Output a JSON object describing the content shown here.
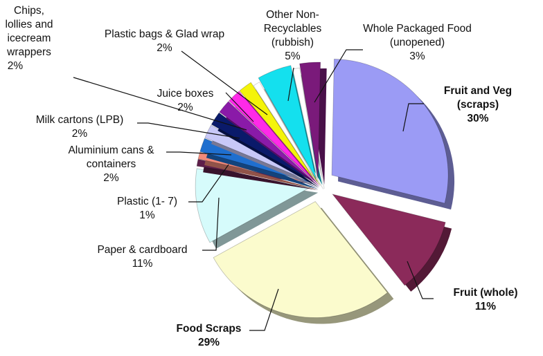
{
  "chart_data": {
    "type": "pie",
    "title": "",
    "slices": [
      {
        "label": "Fruit and Veg (scraps)",
        "value": 30,
        "value_label": "30%",
        "color": "#9b9bf5",
        "bold": true,
        "exploded": true
      },
      {
        "label": "Fruit (whole)",
        "value": 11,
        "value_label": "11%",
        "color": "#8b2a5a",
        "bold": true,
        "exploded": true
      },
      {
        "label": "Food Scraps",
        "value": 29,
        "value_label": "29%",
        "color": "#fbfbcd",
        "bold": true,
        "exploded": true
      },
      {
        "label": "Paper & cardboard",
        "value": 11,
        "value_label": "11%",
        "color": "#d6fbfb",
        "bold": false,
        "exploded": false
      },
      {
        "label": "Plastic (1- 7)",
        "value": 1,
        "value_label": "1%",
        "color": "#5e1f4a",
        "bold": false,
        "exploded": false
      },
      {
        "label": "",
        "value": 1,
        "value_label": "",
        "color": "#f28a7a",
        "bold": false,
        "exploded": false
      },
      {
        "label": "Aluminium cans & containers",
        "value": 2,
        "value_label": "2%",
        "color": "#1f6fcf",
        "bold": false,
        "exploded": false
      },
      {
        "label": "Milk cartons (LPB)",
        "value": 2,
        "value_label": "2%",
        "color": "#c8c8f8",
        "bold": false,
        "exploded": false
      },
      {
        "label": "",
        "value": 2,
        "value_label": "",
        "color": "#0a1a6a",
        "bold": false,
        "exploded": false
      },
      {
        "label": "Chips, lollies and icecream wrappers",
        "value": 2,
        "value_label": "2%",
        "color": "#8a1aa8",
        "bold": false,
        "exploded": false
      },
      {
        "label": "Juice boxes",
        "value": 2,
        "value_label": "2%",
        "color": "#ff2ae8",
        "bold": false,
        "exploded": false
      },
      {
        "label": "Plastic bags & Glad wrap",
        "value": 2,
        "value_label": "2%",
        "color": "#f4f40a",
        "bold": false,
        "exploded": false
      },
      {
        "label": "",
        "value": 1,
        "value_label": "",
        "color": "#ffffff",
        "bold": false,
        "exploded": false
      },
      {
        "label": "Other Non-Recyclables (rubbish)",
        "value": 5,
        "value_label": "5%",
        "color": "#14e0ee",
        "bold": false,
        "exploded": false
      },
      {
        "label": "",
        "value": 1,
        "value_label": "",
        "color": "#ffffff",
        "bold": false,
        "exploded": false
      },
      {
        "label": "Whole Packaged Food (unopened)",
        "value": 3,
        "value_label": "3%",
        "color": "#7a1a7a",
        "bold": false,
        "exploded": false
      }
    ],
    "legend": "none",
    "style": "3D exploded pie with leader lines"
  }
}
